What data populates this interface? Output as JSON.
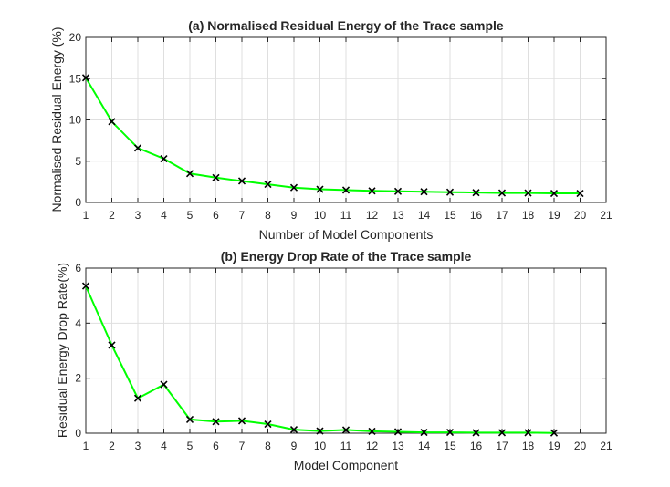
{
  "chart_data": [
    {
      "type": "line",
      "title": "(a) Normalised Residual Energy of the Trace sample",
      "xlabel": "Number of Model Components",
      "ylabel": "Normalised Residual Energy (%)",
      "xlim": [
        1,
        21
      ],
      "ylim": [
        0,
        20
      ],
      "xticks": [
        1,
        2,
        3,
        4,
        5,
        6,
        7,
        8,
        9,
        10,
        11,
        12,
        13,
        14,
        15,
        16,
        17,
        18,
        19,
        20,
        21
      ],
      "yticks": [
        0,
        5,
        10,
        15,
        20
      ],
      "grid": true,
      "line_color": "#00ff00",
      "marker_color": "#000000",
      "marker": "x",
      "x": [
        1,
        2,
        3,
        4,
        5,
        6,
        7,
        8,
        9,
        10,
        11,
        12,
        13,
        14,
        15,
        16,
        17,
        18,
        19,
        20
      ],
      "y": [
        15.1,
        9.8,
        6.6,
        5.3,
        3.5,
        3.0,
        2.6,
        2.2,
        1.8,
        1.6,
        1.5,
        1.4,
        1.35,
        1.3,
        1.25,
        1.2,
        1.15,
        1.15,
        1.1,
        1.1
      ]
    },
    {
      "type": "line",
      "title": "(b) Energy Drop Rate  of the Trace sample",
      "xlabel": "Model Component",
      "ylabel": "Residual Energy Drop Rate(%)",
      "xlim": [
        1,
        21
      ],
      "ylim": [
        0,
        6
      ],
      "xticks": [
        1,
        2,
        3,
        4,
        5,
        6,
        7,
        8,
        9,
        10,
        11,
        12,
        13,
        14,
        15,
        16,
        17,
        18,
        19,
        20,
        21
      ],
      "yticks": [
        0,
        2,
        4,
        6
      ],
      "grid": true,
      "line_color": "#00ff00",
      "marker_color": "#000000",
      "marker": "x",
      "x": [
        1,
        2,
        3,
        4,
        5,
        6,
        7,
        8,
        9,
        10,
        11,
        12,
        13,
        14,
        15,
        16,
        17,
        18,
        19
      ],
      "y": [
        5.35,
        3.2,
        1.27,
        1.77,
        0.5,
        0.42,
        0.45,
        0.33,
        0.13,
        0.08,
        0.12,
        0.07,
        0.05,
        0.03,
        0.03,
        0.02,
        0.02,
        0.02,
        0.01
      ]
    }
  ]
}
